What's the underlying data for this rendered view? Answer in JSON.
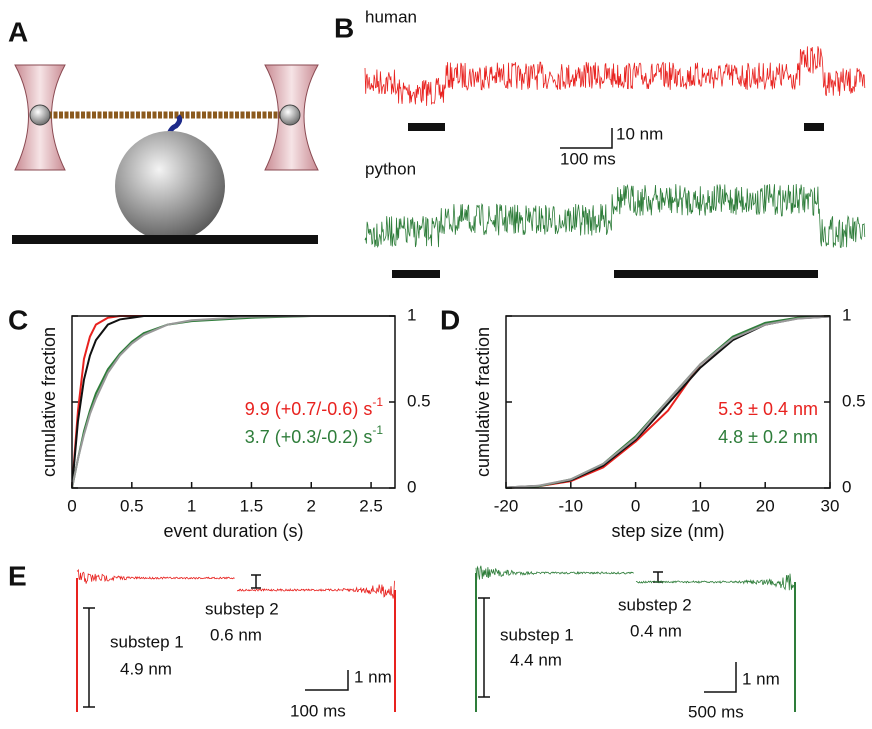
{
  "panels": {
    "a": "A",
    "b": "B",
    "c": "C",
    "d": "D",
    "e": "E"
  },
  "panel_b": {
    "traces": [
      "human",
      "python"
    ],
    "scale_y": "10 nm",
    "scale_x": "100 ms"
  },
  "panel_e": [
    {
      "substep1": "substep 1",
      "size1": "4.9 nm",
      "substep2": "substep 2",
      "size2": "0.6 nm",
      "scale_y": "1 nm",
      "scale_x": "100 ms"
    },
    {
      "substep1": "substep 1",
      "size1": "4.4 nm",
      "substep2": "substep 2",
      "size2": "0.4 nm",
      "scale_y": "1 nm",
      "scale_x": "500 ms"
    }
  ],
  "chart_data": [
    {
      "type": "line",
      "xlabel": "event duration (s)",
      "ylabel": "cumulative fraction",
      "x": [
        0,
        0.05,
        0.1,
        0.15,
        0.2,
        0.3,
        0.4,
        0.5,
        0.6,
        0.8,
        1,
        1.5,
        2,
        2.7
      ],
      "xlim": [
        0,
        2.7
      ],
      "xticks": [
        0,
        0.5,
        1,
        1.5,
        2,
        2.5
      ],
      "ylim": [
        0,
        1
      ],
      "yticks": [
        0,
        0.5,
        1
      ],
      "series": [
        {
          "color": "#e8221f",
          "values": [
            0,
            0.45,
            0.75,
            0.88,
            0.95,
            0.99,
            1,
            1,
            1,
            1,
            1,
            1,
            1,
            1
          ]
        },
        {
          "color": "#111111",
          "values": [
            0,
            0.39,
            0.63,
            0.77,
            0.86,
            0.95,
            0.98,
            0.99,
            1,
            1,
            1,
            1,
            1,
            1
          ]
        },
        {
          "color": "#2e7d3a",
          "values": [
            0,
            0.17,
            0.33,
            0.45,
            0.55,
            0.69,
            0.78,
            0.85,
            0.9,
            0.95,
            0.97,
            0.99,
            1,
            1
          ]
        },
        {
          "color": "#999999",
          "values": [
            0,
            0.17,
            0.31,
            0.43,
            0.52,
            0.67,
            0.77,
            0.84,
            0.89,
            0.95,
            0.975,
            0.996,
            1,
            1
          ]
        }
      ],
      "annotations": [
        {
          "text": "9.9 (+0.7/-0.6) s",
          "sup": "-1",
          "color": "#e8221f"
        },
        {
          "text": "3.7 (+0.3/-0.2) s",
          "sup": "-1",
          "color": "#2e7d3a"
        }
      ]
    },
    {
      "type": "line",
      "xlabel": "step size (nm)",
      "ylabel": "cumulative fraction",
      "x": [
        -20,
        -15,
        -10,
        -5,
        0,
        5,
        10,
        15,
        20,
        25,
        30
      ],
      "xlim": [
        -20,
        30
      ],
      "xticks": [
        -20,
        -10,
        0,
        10,
        20,
        30
      ],
      "ylim": [
        0,
        1
      ],
      "yticks": [
        0,
        0.5,
        1
      ],
      "series": [
        {
          "color": "#e8221f",
          "values": [
            0,
            0.01,
            0.04,
            0.12,
            0.27,
            0.45,
            0.72,
            0.87,
            0.95,
            0.99,
            1
          ]
        },
        {
          "color": "#111111",
          "values": [
            0.003,
            0.012,
            0.045,
            0.13,
            0.28,
            0.49,
            0.7,
            0.86,
            0.95,
            0.986,
            0.997
          ]
        },
        {
          "color": "#2e7d3a",
          "values": [
            0,
            0.01,
            0.05,
            0.14,
            0.3,
            0.51,
            0.72,
            0.88,
            0.96,
            0.99,
            1
          ]
        },
        {
          "color": "#999999",
          "values": [
            0.003,
            0.013,
            0.05,
            0.14,
            0.29,
            0.51,
            0.72,
            0.87,
            0.95,
            0.985,
            0.997
          ]
        }
      ],
      "annotations": [
        {
          "text": "5.3 ± 0.4 nm",
          "color": "#e8221f"
        },
        {
          "text": "4.8 ± 0.2 nm",
          "color": "#2e7d3a"
        }
      ]
    }
  ]
}
